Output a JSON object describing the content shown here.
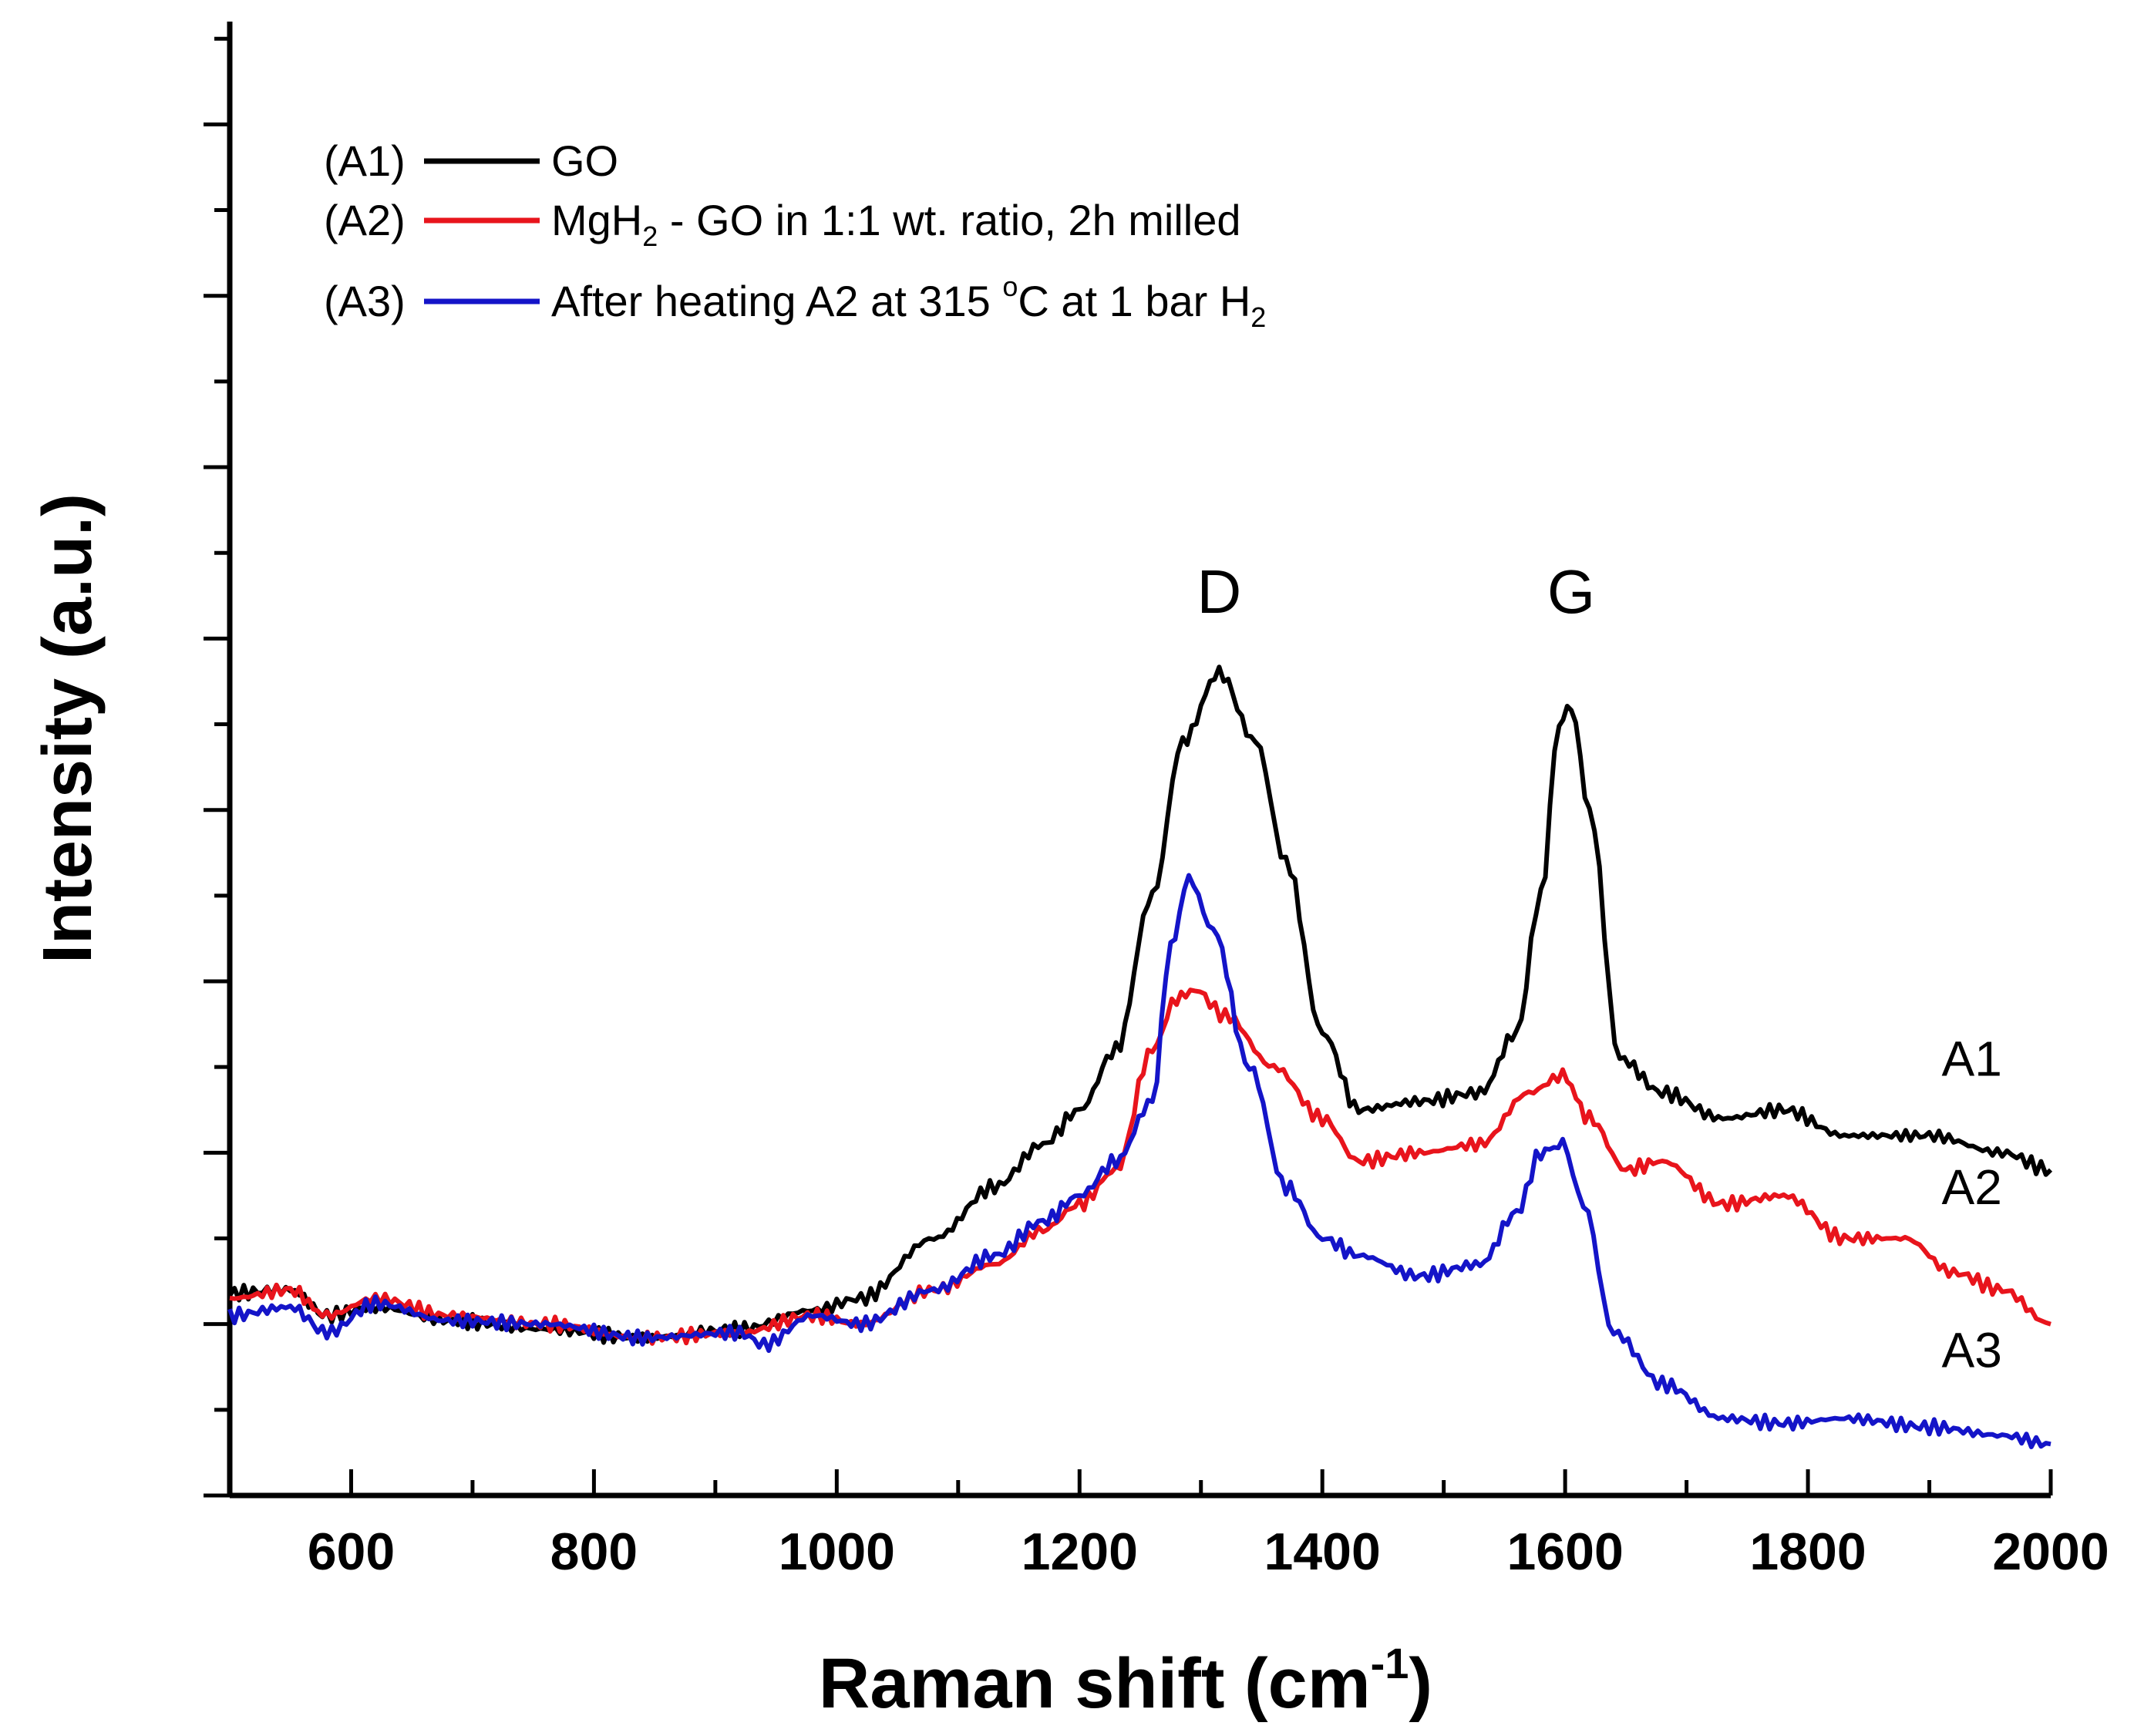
{
  "chart_data": {
    "type": "line",
    "title": "",
    "xlabel": "Raman shift (cm",
    "xlabel_sup": "-1",
    "xlabel_close": ")",
    "ylabel": "Intensity (a.u.)",
    "xlim": [
      500,
      2000
    ],
    "ylim": [
      -1.0,
      7.6
    ],
    "x_ticks": [
      600,
      800,
      1000,
      1200,
      1400,
      1600,
      1800,
      2000
    ],
    "x_tick_labels": [
      "600",
      "800",
      "1000",
      "1200",
      "1400",
      "1600",
      "1800",
      "2000"
    ],
    "y_ticks_show_labels": false,
    "legend": [
      {
        "code": "(A1)",
        "text": "GO",
        "color": "#000000"
      },
      {
        "code": "(A2)",
        "text": "MgH",
        "sub": "2",
        "rest": " - GO in 1:1 wt. ratio, 2h milled",
        "color": "#e8141c"
      },
      {
        "code": "(A3)",
        "text": "After heating A2 at 315 ",
        "sup": "o",
        "rest": "C at 1 bar H",
        "sub": "2",
        "color": "#1414c8"
      }
    ],
    "peak_annotations": [
      {
        "label": "D",
        "x": 1315,
        "y": 4.15
      },
      {
        "label": "G",
        "x": 1605,
        "y": 4.15
      }
    ],
    "series_labels": [
      {
        "label": "A1",
        "x": 1935,
        "y": 1.45
      },
      {
        "label": "A2",
        "x": 1935,
        "y": 0.7
      },
      {
        "label": "A3",
        "x": 1935,
        "y": -0.25
      }
    ],
    "series": [
      {
        "name": "A1",
        "color": "#000000",
        "x": [
          500,
          550,
          580,
          620,
          680,
          760,
          840,
          920,
          980,
          1020,
          1080,
          1130,
          1170,
          1200,
          1230,
          1260,
          1285,
          1315,
          1345,
          1370,
          1400,
          1430,
          1480,
          1530,
          1560,
          1580,
          1595,
          1605,
          1620,
          1645,
          1680,
          1730,
          1780,
          1830,
          1900,
          1960,
          2000
        ],
        "y": [
          0.18,
          0.2,
          0.05,
          0.1,
          0.02,
          -0.03,
          -0.08,
          -0.03,
          0.08,
          0.15,
          0.5,
          0.8,
          1.05,
          1.25,
          1.6,
          2.5,
          3.4,
          3.8,
          3.4,
          2.7,
          1.7,
          1.25,
          1.3,
          1.35,
          1.7,
          2.5,
          3.5,
          3.6,
          3.0,
          1.55,
          1.35,
          1.2,
          1.25,
          1.1,
          1.1,
          1.0,
          0.9
        ]
      },
      {
        "name": "A2",
        "color": "#e8141c",
        "x": [
          500,
          550,
          580,
          620,
          680,
          760,
          840,
          920,
          980,
          1020,
          1080,
          1130,
          1170,
          1200,
          1230,
          1260,
          1280,
          1295,
          1320,
          1360,
          1400,
          1430,
          1480,
          1530,
          1570,
          1598,
          1620,
          1650,
          1680,
          1730,
          1780,
          1830,
          1880,
          1920,
          1960,
          2000
        ],
        "y": [
          0.15,
          0.2,
          0.05,
          0.15,
          0.05,
          0.0,
          -0.08,
          -0.05,
          0.05,
          0.0,
          0.2,
          0.35,
          0.55,
          0.7,
          0.9,
          1.6,
          1.9,
          1.95,
          1.8,
          1.5,
          1.2,
          0.95,
          1.0,
          1.05,
          1.35,
          1.45,
          1.2,
          0.9,
          0.95,
          0.7,
          0.75,
          0.5,
          0.5,
          0.3,
          0.2,
          0.0
        ]
      },
      {
        "name": "A3",
        "color": "#1414c8",
        "x": [
          500,
          550,
          580,
          620,
          680,
          760,
          840,
          920,
          940,
          980,
          1020,
          1080,
          1130,
          1170,
          1200,
          1230,
          1260,
          1275,
          1290,
          1310,
          1340,
          1370,
          1400,
          1430,
          1480,
          1530,
          1560,
          1580,
          1598,
          1615,
          1640,
          1680,
          1730,
          1780,
          1830,
          1900,
          1960,
          2000
        ],
        "y": [
          0.05,
          0.1,
          -0.05,
          0.12,
          0.02,
          0.0,
          -0.08,
          -0.05,
          -0.12,
          0.05,
          0.0,
          0.2,
          0.4,
          0.6,
          0.75,
          0.95,
          1.3,
          2.2,
          2.6,
          2.3,
          1.5,
          0.8,
          0.5,
          0.4,
          0.28,
          0.35,
          0.65,
          1.0,
          1.05,
          0.7,
          -0.05,
          -0.35,
          -0.55,
          -0.58,
          -0.55,
          -0.6,
          -0.65,
          -0.7
        ]
      }
    ]
  }
}
